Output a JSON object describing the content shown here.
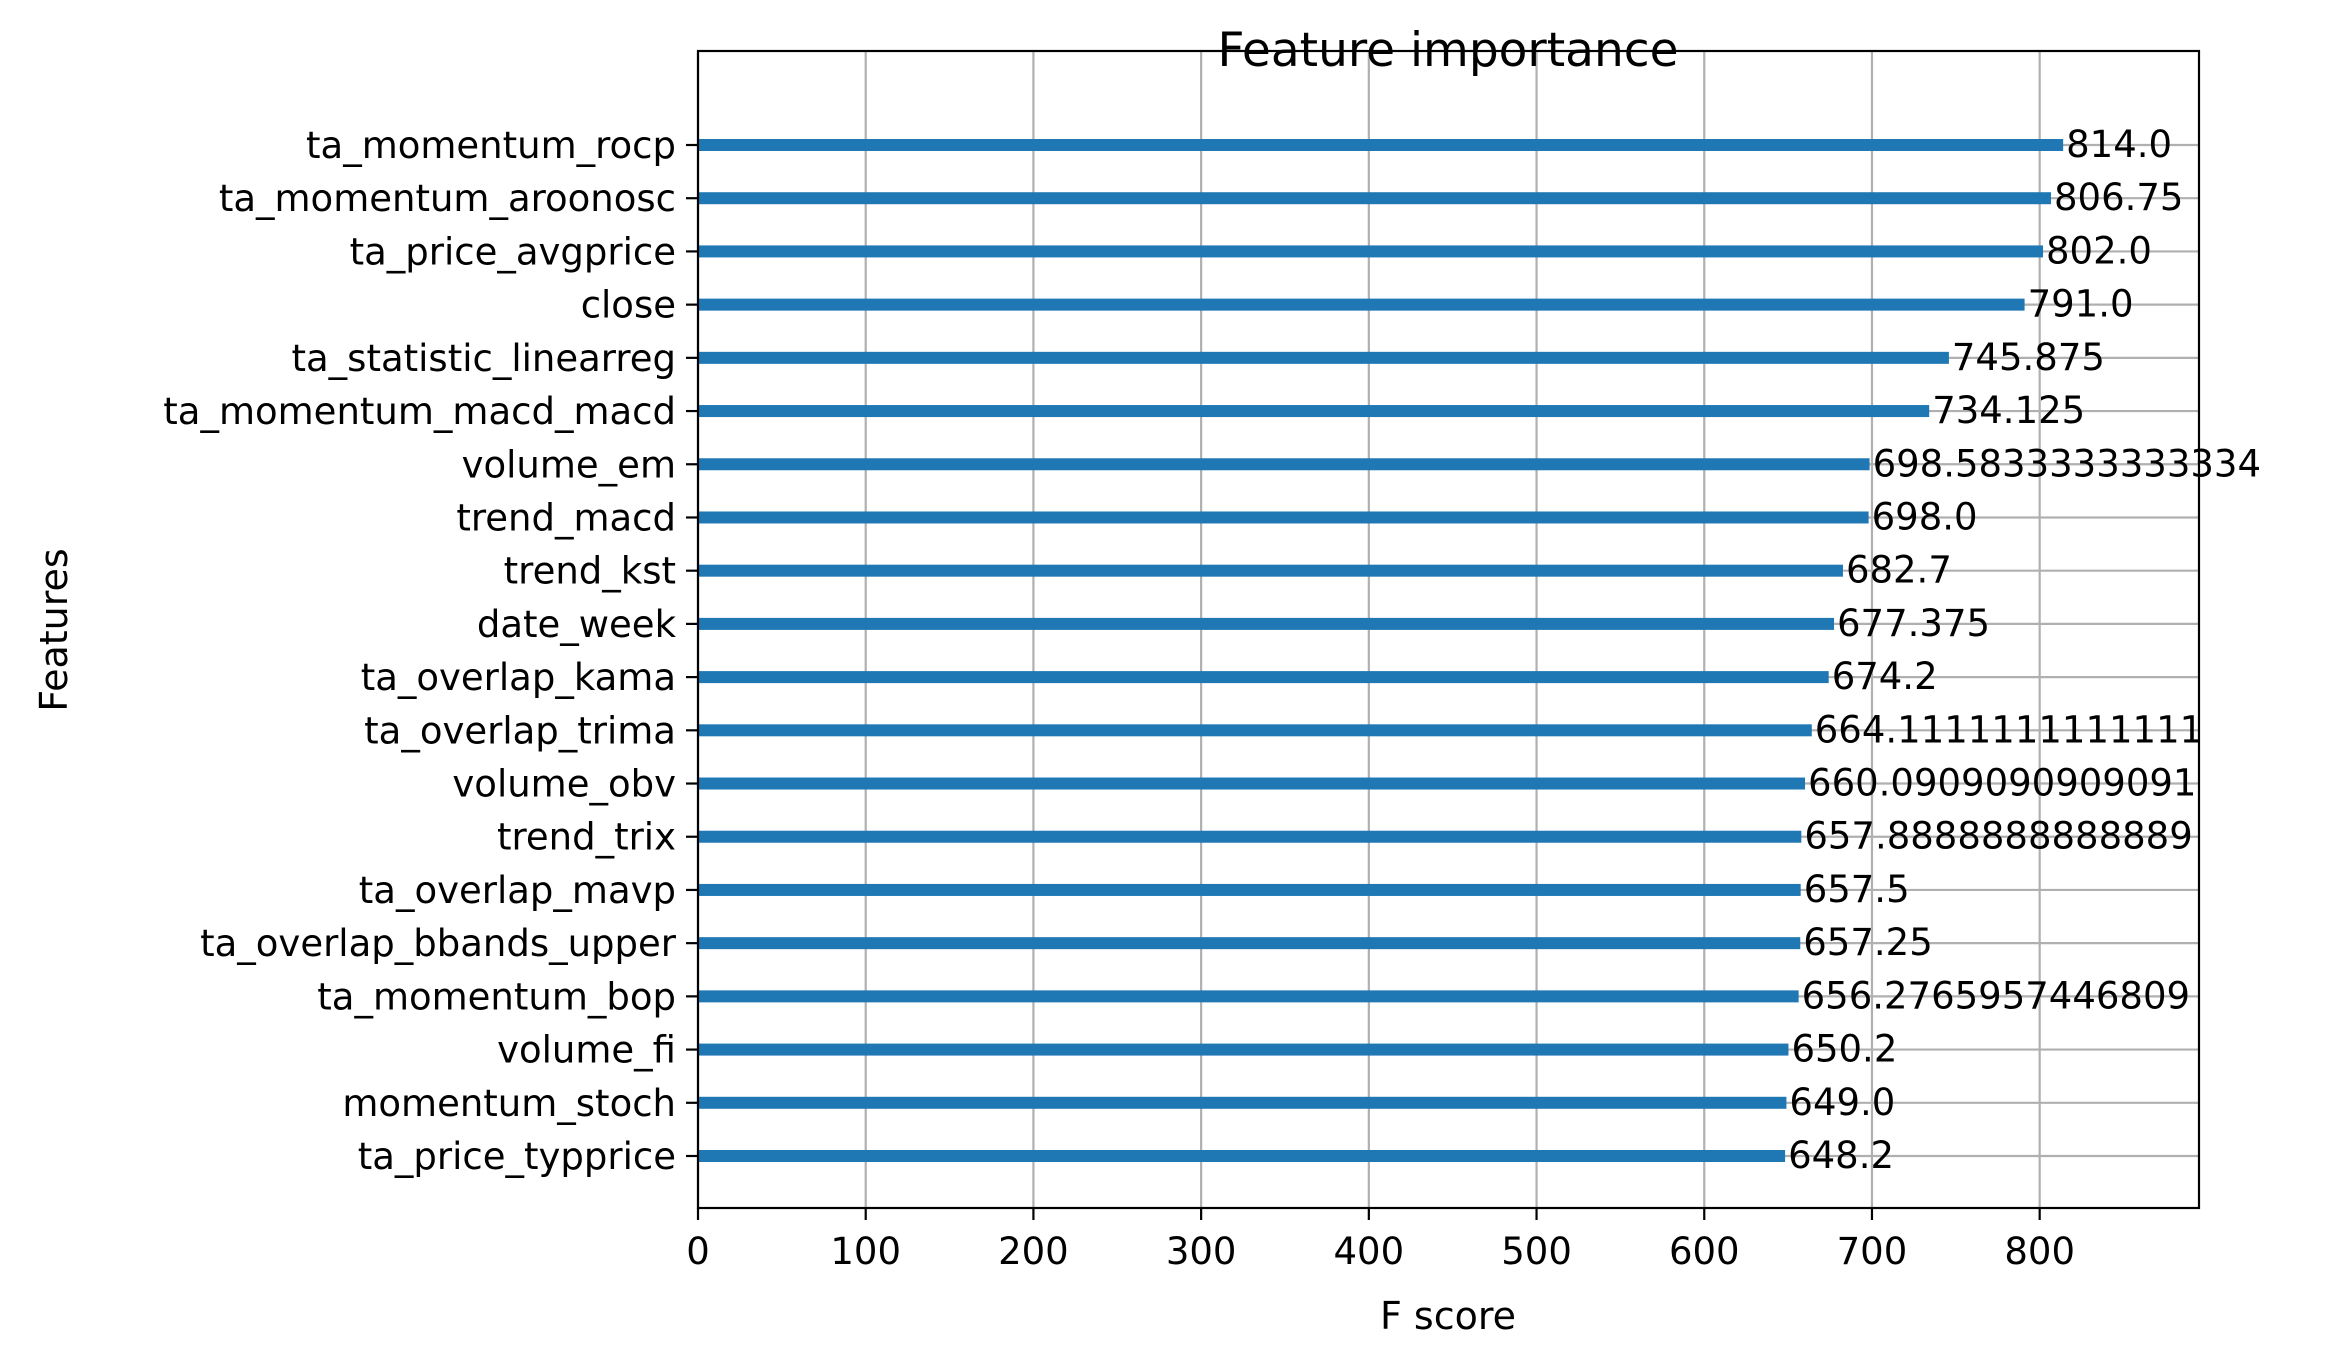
{
  "chart_data": {
    "type": "bar",
    "orientation": "horizontal",
    "title": "Feature importance",
    "xlabel": "F score",
    "ylabel": "Features",
    "xlim": [
      0,
      895
    ],
    "x_ticks": [
      0,
      100,
      200,
      300,
      400,
      500,
      600,
      700,
      800
    ],
    "grid": true,
    "bar_color": "#1f77b4",
    "categories": [
      "ta_momentum_rocp",
      "ta_momentum_aroonosc",
      "ta_price_avgprice",
      "close",
      "ta_statistic_linearreg",
      "ta_momentum_macd_macd",
      "volume_em",
      "trend_macd",
      "trend_kst",
      "date_week",
      "ta_overlap_kama",
      "ta_overlap_trima",
      "volume_obv",
      "trend_trix",
      "ta_overlap_mavp",
      "ta_overlap_bbands_upper",
      "ta_momentum_bop",
      "volume_fi",
      "momentum_stoch",
      "ta_price_typprice"
    ],
    "values": [
      814.0,
      806.75,
      802.0,
      791.0,
      745.875,
      734.125,
      698.5833333333334,
      698.0,
      682.7,
      677.375,
      674.2,
      664.1111111111111,
      660.0909090909091,
      657.8888888888889,
      657.5,
      657.25,
      656.2765957446809,
      650.2,
      649.0,
      648.2
    ],
    "value_labels": [
      "814.0",
      "806.75",
      "802.0",
      "791.0",
      "745.875",
      "734.125",
      "698.5833333333334",
      "698.0",
      "682.7",
      "677.375",
      "674.2",
      "664.1111111111111",
      "660.0909090909091",
      "657.8888888888889",
      "657.5",
      "657.25",
      "656.2765957446809",
      "650.2",
      "649.0",
      "648.2"
    ]
  }
}
